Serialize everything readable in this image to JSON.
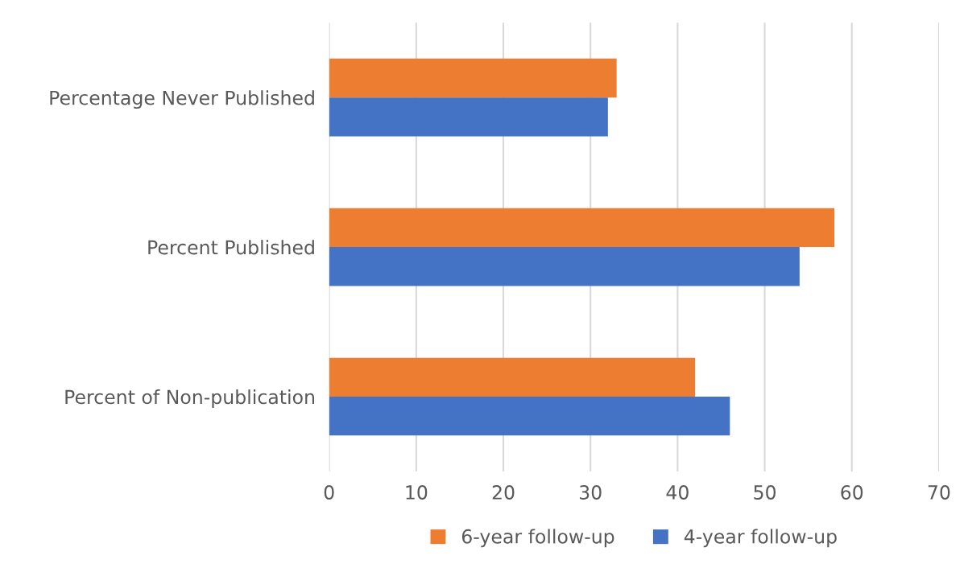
{
  "chart_data": {
    "type": "bar",
    "orientation": "horizontal",
    "categories": [
      "Percentage Never Published",
      "Percent Published",
      "Percent of Non-publication"
    ],
    "series": [
      {
        "name": "6-year follow-up",
        "color": "#ed7d31",
        "values": [
          33,
          58,
          42
        ]
      },
      {
        "name": "4-year follow-up",
        "color": "#4472c4",
        "values": [
          32,
          54,
          46
        ]
      }
    ],
    "xlim": [
      0,
      70
    ],
    "xticks": [
      0,
      10,
      20,
      30,
      40,
      50,
      60,
      70
    ],
    "grid": "x",
    "legend": "bottom"
  }
}
